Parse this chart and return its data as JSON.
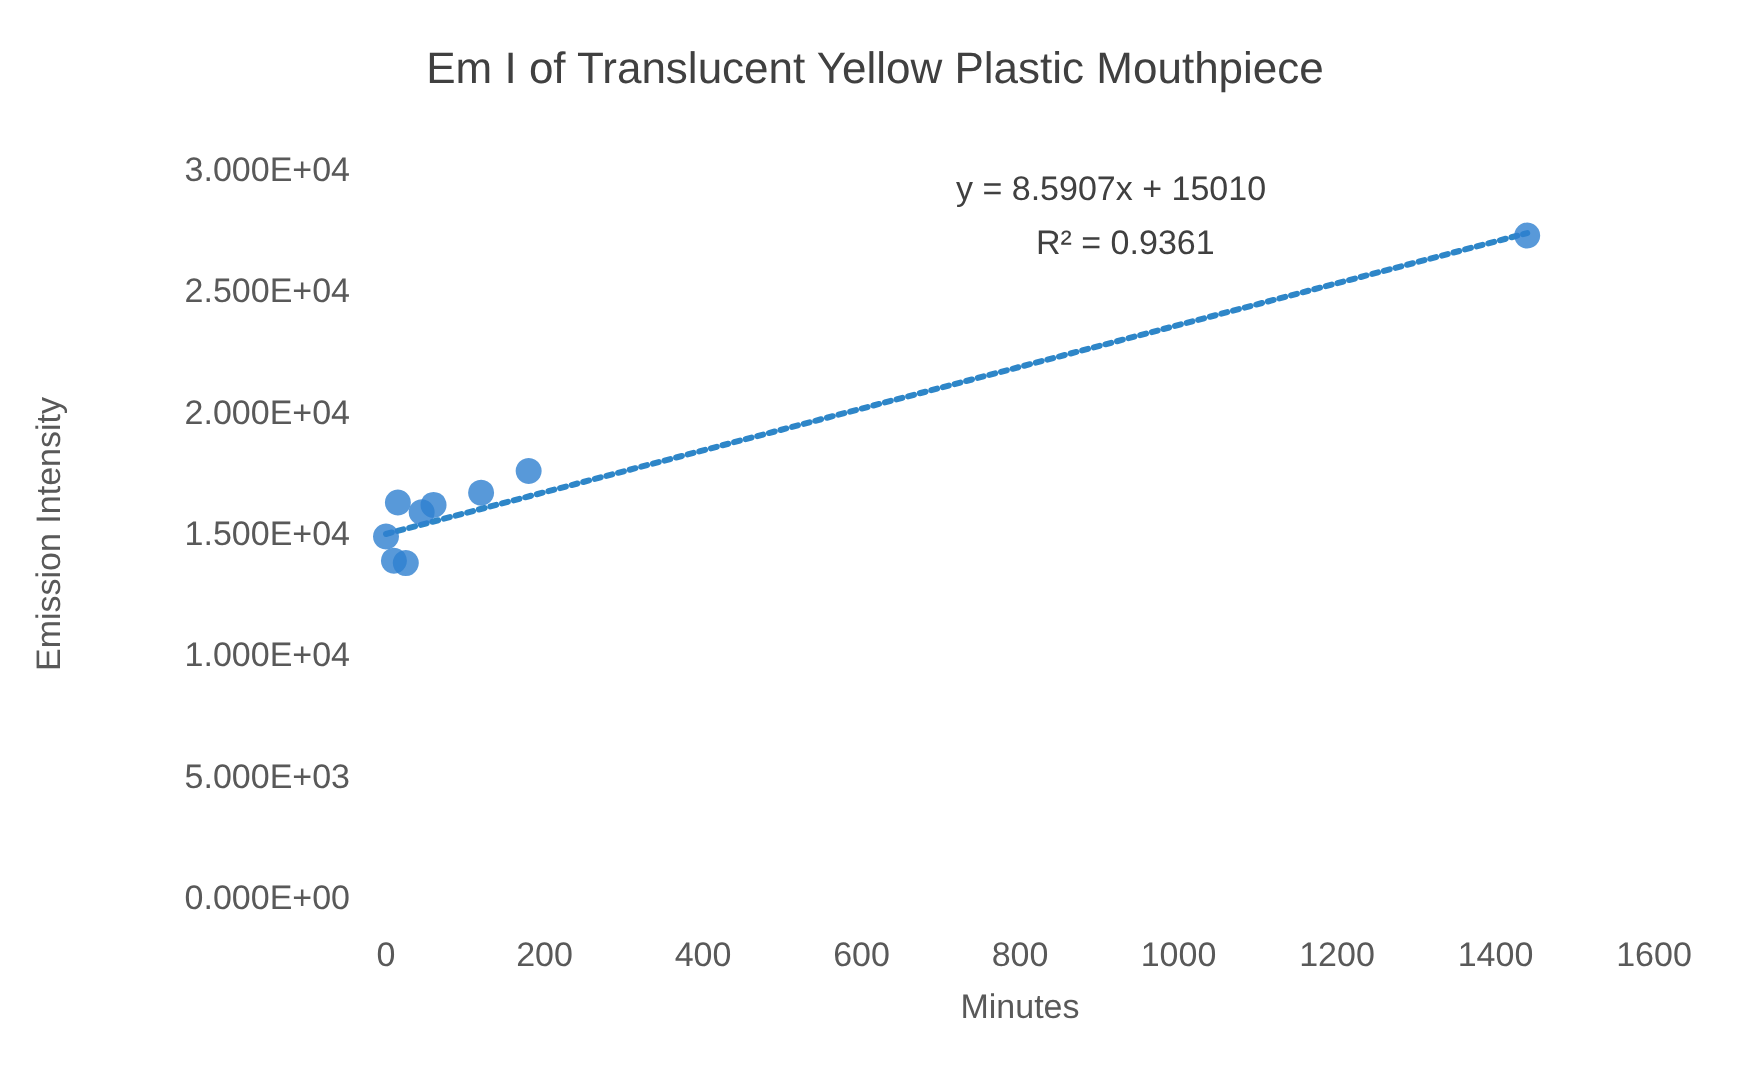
{
  "chart_data": {
    "type": "scatter",
    "title": "Em I of Translucent Yellow Plastic Mouthpiece",
    "xlabel": "Minutes",
    "ylabel": "Emission Intensity",
    "series": [
      {
        "color": "#2e7fd0",
        "x": [
          0,
          10,
          25,
          15,
          45,
          60,
          120,
          180,
          1440
        ],
        "values": [
          14900,
          13900,
          13800,
          16300,
          15900,
          16200,
          16700,
          17600,
          27300
        ],
        "marker": "circle"
      },
      {
        "type": "line",
        "color": "#2e86c8",
        "x": [
          0,
          1440
        ],
        "values": [
          15000,
          27400
        ],
        "line_style": "dotted",
        "marker": "none"
      }
    ],
    "xlim": [
      0,
      1600
    ],
    "xticks": [
      0,
      200,
      400,
      600,
      800,
      1000,
      1200,
      1400,
      1600
    ],
    "ylim": [
      0,
      30000
    ],
    "yticks": [
      {
        "value": 0,
        "label": "0.000E+00"
      },
      {
        "value": 5000,
        "label": "5.000E+03"
      },
      {
        "value": 10000,
        "label": "1.000E+04"
      },
      {
        "value": 15000,
        "label": "1.500E+04"
      },
      {
        "value": 20000,
        "label": "2.000E+04"
      },
      {
        "value": 25000,
        "label": "2.500E+04"
      },
      {
        "value": 30000,
        "label": "3.000E+04"
      }
    ],
    "annotations": [
      "y = 8.5907x + 15010",
      "R² = 0.9361"
    ],
    "grid": false
  }
}
